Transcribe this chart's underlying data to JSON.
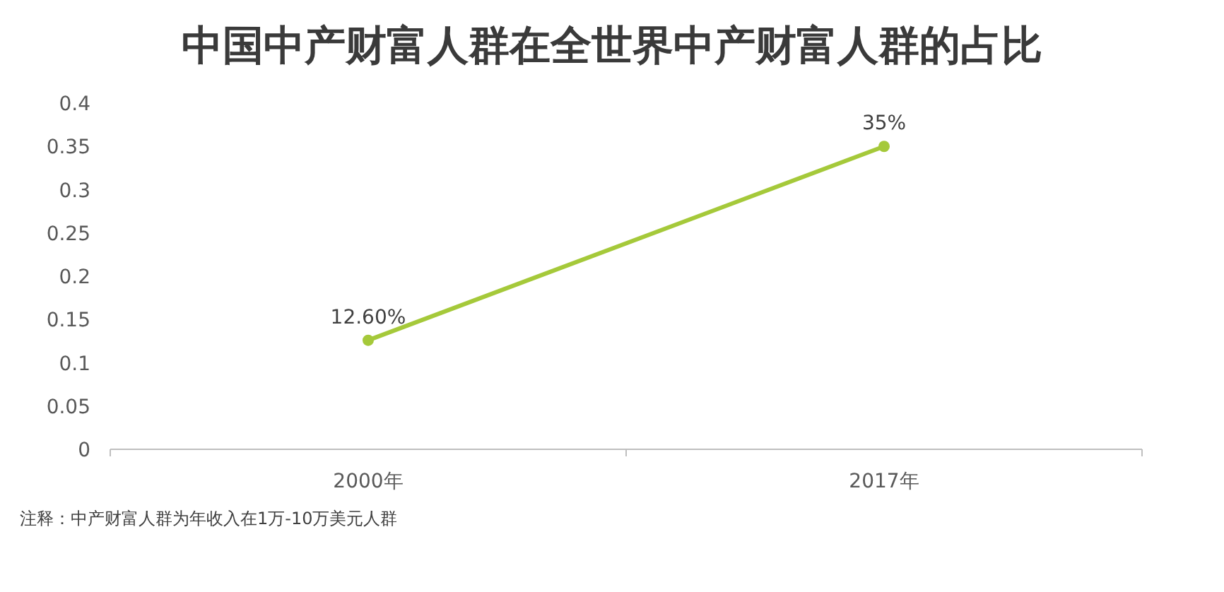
{
  "chart_data": {
    "type": "line",
    "title": "中国中产财富人群在全世界中产财富人群的占比",
    "categories": [
      "2000年",
      "2017年"
    ],
    "series": [
      {
        "color": "#a5c93a",
        "values": [
          0.126,
          0.35
        ],
        "value_labels": [
          "12.60%",
          "35%"
        ]
      }
    ],
    "ylim": [
      0,
      0.4
    ],
    "yticks": [
      0,
      0.05,
      0.1,
      0.15,
      0.2,
      0.25,
      0.3,
      0.35,
      0.4
    ],
    "marker": "circle",
    "annotations": [
      "注释：中产财富人群为年收入在1万-10万美元人群"
    ]
  }
}
